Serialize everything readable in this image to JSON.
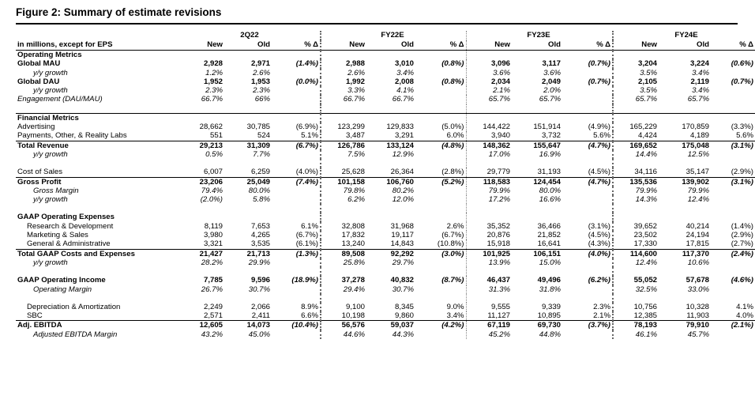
{
  "title": "Figure 2: Summary of estimate revisions",
  "header": {
    "label": "in millions, except for EPS",
    "periods": [
      "2Q22",
      "FY22E",
      "FY23E",
      "FY24E"
    ],
    "col_new": "New",
    "col_old": "Old",
    "col_pct": "% Δ"
  },
  "rows": [
    {
      "label": "Operating Metrics",
      "style": "section",
      "border": "top",
      "cells": [
        "",
        "",
        "",
        "",
        "",
        "",
        "",
        "",
        "",
        "",
        "",
        ""
      ]
    },
    {
      "label": "Global MAU",
      "style": "bold",
      "cells": [
        "2,928",
        "2,971",
        "(1.4%)",
        "2,988",
        "3,010",
        "(0.8%)",
        "3,096",
        "3,117",
        "(0.7%)",
        "3,204",
        "3,224",
        "(0.6%)"
      ]
    },
    {
      "label": "y/y growth",
      "style": "italic-ind",
      "cells": [
        "1.2%",
        "2.6%",
        "",
        "2.6%",
        "3.4%",
        "",
        "3.6%",
        "3.6%",
        "",
        "3.5%",
        "3.4%",
        ""
      ]
    },
    {
      "label": "Global DAU",
      "style": "bold",
      "cells": [
        "1,952",
        "1,953",
        "(0.0%)",
        "1,992",
        "2,008",
        "(0.8%)",
        "2,034",
        "2,049",
        "(0.7%)",
        "2,105",
        "2,119",
        "(0.7%)"
      ]
    },
    {
      "label": "y/y growth",
      "style": "italic-ind",
      "cells": [
        "2.3%",
        "2.3%",
        "",
        "3.3%",
        "4.1%",
        "",
        "2.1%",
        "2.0%",
        "",
        "3.5%",
        "3.4%",
        ""
      ]
    },
    {
      "label": "Engagement (DAU/MAU)",
      "style": "italic",
      "cells": [
        "66.7%",
        "66%",
        "",
        "66.7%",
        "66.7%",
        "",
        "65.7%",
        "65.7%",
        "",
        "65.7%",
        "65.7%",
        ""
      ]
    },
    {
      "label": "",
      "style": "gap",
      "cells": [
        "",
        "",
        "",
        "",
        "",
        "",
        "",
        "",
        "",
        "",
        "",
        ""
      ]
    },
    {
      "label": "Financial Metrics",
      "style": "section",
      "border": "top",
      "cells": [
        "",
        "",
        "",
        "",
        "",
        "",
        "",
        "",
        "",
        "",
        "",
        ""
      ]
    },
    {
      "label": "Advertising",
      "style": "plain",
      "cells": [
        "28,662",
        "30,785",
        "(6.9%)",
        "123,299",
        "129,833",
        "(5.0%)",
        "144,422",
        "151,914",
        "(4.9%)",
        "165,229",
        "170,859",
        "(3.3%)"
      ]
    },
    {
      "label": "Payments, Other, & Reality Labs",
      "style": "plain",
      "cells": [
        "551",
        "524",
        "5.1%",
        "3,487",
        "3,291",
        "6.0%",
        "3,940",
        "3,732",
        "5.6%",
        "4,424",
        "4,189",
        "5.6%"
      ]
    },
    {
      "label": "Total Revenue",
      "style": "bold",
      "border": "top",
      "cells": [
        "29,213",
        "31,309",
        "(6.7%)",
        "126,786",
        "133,124",
        "(4.8%)",
        "148,362",
        "155,647",
        "(4.7%)",
        "169,652",
        "175,048",
        "(3.1%)"
      ]
    },
    {
      "label": "y/y growth",
      "style": "italic-ind",
      "cells": [
        "0.5%",
        "7.7%",
        "",
        "7.5%",
        "12.9%",
        "",
        "17.0%",
        "16.9%",
        "",
        "14.4%",
        "12.5%",
        ""
      ]
    },
    {
      "label": "",
      "style": "gap",
      "cells": [
        "",
        "",
        "",
        "",
        "",
        "",
        "",
        "",
        "",
        "",
        "",
        ""
      ]
    },
    {
      "label": "Cost of Sales",
      "style": "plain",
      "cells": [
        "6,007",
        "6,259",
        "(4.0%)",
        "25,628",
        "26,364",
        "(2.8%)",
        "29,779",
        "31,193",
        "(4.5%)",
        "34,116",
        "35,147",
        "(2.9%)"
      ]
    },
    {
      "label": "Gross Profit",
      "style": "bold",
      "border": "top",
      "cells": [
        "23,206",
        "25,049",
        "(7.4%)",
        "101,158",
        "106,760",
        "(5.2%)",
        "118,583",
        "124,454",
        "(4.7%)",
        "135,536",
        "139,902",
        "(3.1%)"
      ]
    },
    {
      "label": "Gross Margin",
      "style": "italic-ind",
      "cells": [
        "79.4%",
        "80.0%",
        "",
        "79.8%",
        "80.2%",
        "",
        "79.9%",
        "80.0%",
        "",
        "79.9%",
        "79.9%",
        ""
      ]
    },
    {
      "label": "y/y growth",
      "style": "italic-ind",
      "cells": [
        "(2.0%)",
        "5.8%",
        "",
        "6.2%",
        "12.0%",
        "",
        "17.2%",
        "16.6%",
        "",
        "14.3%",
        "12.4%",
        ""
      ]
    },
    {
      "label": "",
      "style": "gap",
      "cells": [
        "",
        "",
        "",
        "",
        "",
        "",
        "",
        "",
        "",
        "",
        "",
        ""
      ]
    },
    {
      "label": "GAAP Operating Expenses",
      "style": "bold",
      "cells": [
        "",
        "",
        "",
        "",
        "",
        "",
        "",
        "",
        "",
        "",
        "",
        ""
      ]
    },
    {
      "label": "Research & Development",
      "style": "ind",
      "cells": [
        "8,119",
        "7,653",
        "6.1%",
        "32,808",
        "31,968",
        "2.6%",
        "35,352",
        "36,466",
        "(3.1%)",
        "39,652",
        "40,214",
        "(1.4%)"
      ]
    },
    {
      "label": "Marketing & Sales",
      "style": "ind",
      "cells": [
        "3,980",
        "4,265",
        "(6.7%)",
        "17,832",
        "19,117",
        "(6.7%)",
        "20,876",
        "21,852",
        "(4.5%)",
        "23,502",
        "24,194",
        "(2.9%)"
      ]
    },
    {
      "label": "General & Administrative",
      "style": "ind",
      "cells": [
        "3,321",
        "3,535",
        "(6.1%)",
        "13,240",
        "14,843",
        "(10.8%)",
        "15,918",
        "16,641",
        "(4.3%)",
        "17,330",
        "17,815",
        "(2.7%)"
      ]
    },
    {
      "label": "Total GAAP Costs and Expenses",
      "style": "bold",
      "border": "top",
      "cells": [
        "21,427",
        "21,713",
        "(1.3%)",
        "89,508",
        "92,292",
        "(3.0%)",
        "101,925",
        "106,151",
        "(4.0%)",
        "114,600",
        "117,370",
        "(2.4%)"
      ]
    },
    {
      "label": "y/y growth",
      "style": "italic-ind",
      "cells": [
        "28.2%",
        "29.9%",
        "",
        "25.8%",
        "29.7%",
        "",
        "13.9%",
        "15.0%",
        "",
        "12.4%",
        "10.6%",
        ""
      ]
    },
    {
      "label": "",
      "style": "gap",
      "cells": [
        "",
        "",
        "",
        "",
        "",
        "",
        "",
        "",
        "",
        "",
        "",
        ""
      ]
    },
    {
      "label": "GAAP Operating Income",
      "style": "bold",
      "cells": [
        "7,785",
        "9,596",
        "(18.9%)",
        "37,278",
        "40,832",
        "(8.7%)",
        "46,437",
        "49,496",
        "(6.2%)",
        "55,052",
        "57,678",
        "(4.6%)"
      ]
    },
    {
      "label": "Operating Margin",
      "style": "italic-ind",
      "cells": [
        "26.7%",
        "30.7%",
        "",
        "29.4%",
        "30.7%",
        "",
        "31.3%",
        "31.8%",
        "",
        "32.5%",
        "33.0%",
        ""
      ]
    },
    {
      "label": "",
      "style": "gap",
      "cells": [
        "",
        "",
        "",
        "",
        "",
        "",
        "",
        "",
        "",
        "",
        "",
        ""
      ]
    },
    {
      "label": "Depreciation & Amortization",
      "style": "ind",
      "cells": [
        "2,249",
        "2,066",
        "8.9%",
        "9,100",
        "8,345",
        "9.0%",
        "9,555",
        "9,339",
        "2.3%",
        "10,756",
        "10,328",
        "4.1%"
      ]
    },
    {
      "label": "SBC",
      "style": "ind",
      "cells": [
        "2,571",
        "2,411",
        "6.6%",
        "10,198",
        "9,860",
        "3.4%",
        "11,127",
        "10,895",
        "2.1%",
        "12,385",
        "11,903",
        "4.0%"
      ]
    },
    {
      "label": "Adj. EBITDA",
      "style": "bold",
      "border": "top",
      "cells": [
        "12,605",
        "14,073",
        "(10.4%)",
        "56,576",
        "59,037",
        "(4.2%)",
        "67,119",
        "69,730",
        "(3.7%)",
        "78,193",
        "79,910",
        "(2.1%)"
      ]
    },
    {
      "label": "Adjusted EBITDA Margin",
      "style": "italic-ind",
      "cells": [
        "43.2%",
        "45.0%",
        "",
        "44.6%",
        "44.3%",
        "",
        "45.2%",
        "44.8%",
        "",
        "46.1%",
        "45.7%",
        ""
      ]
    }
  ]
}
